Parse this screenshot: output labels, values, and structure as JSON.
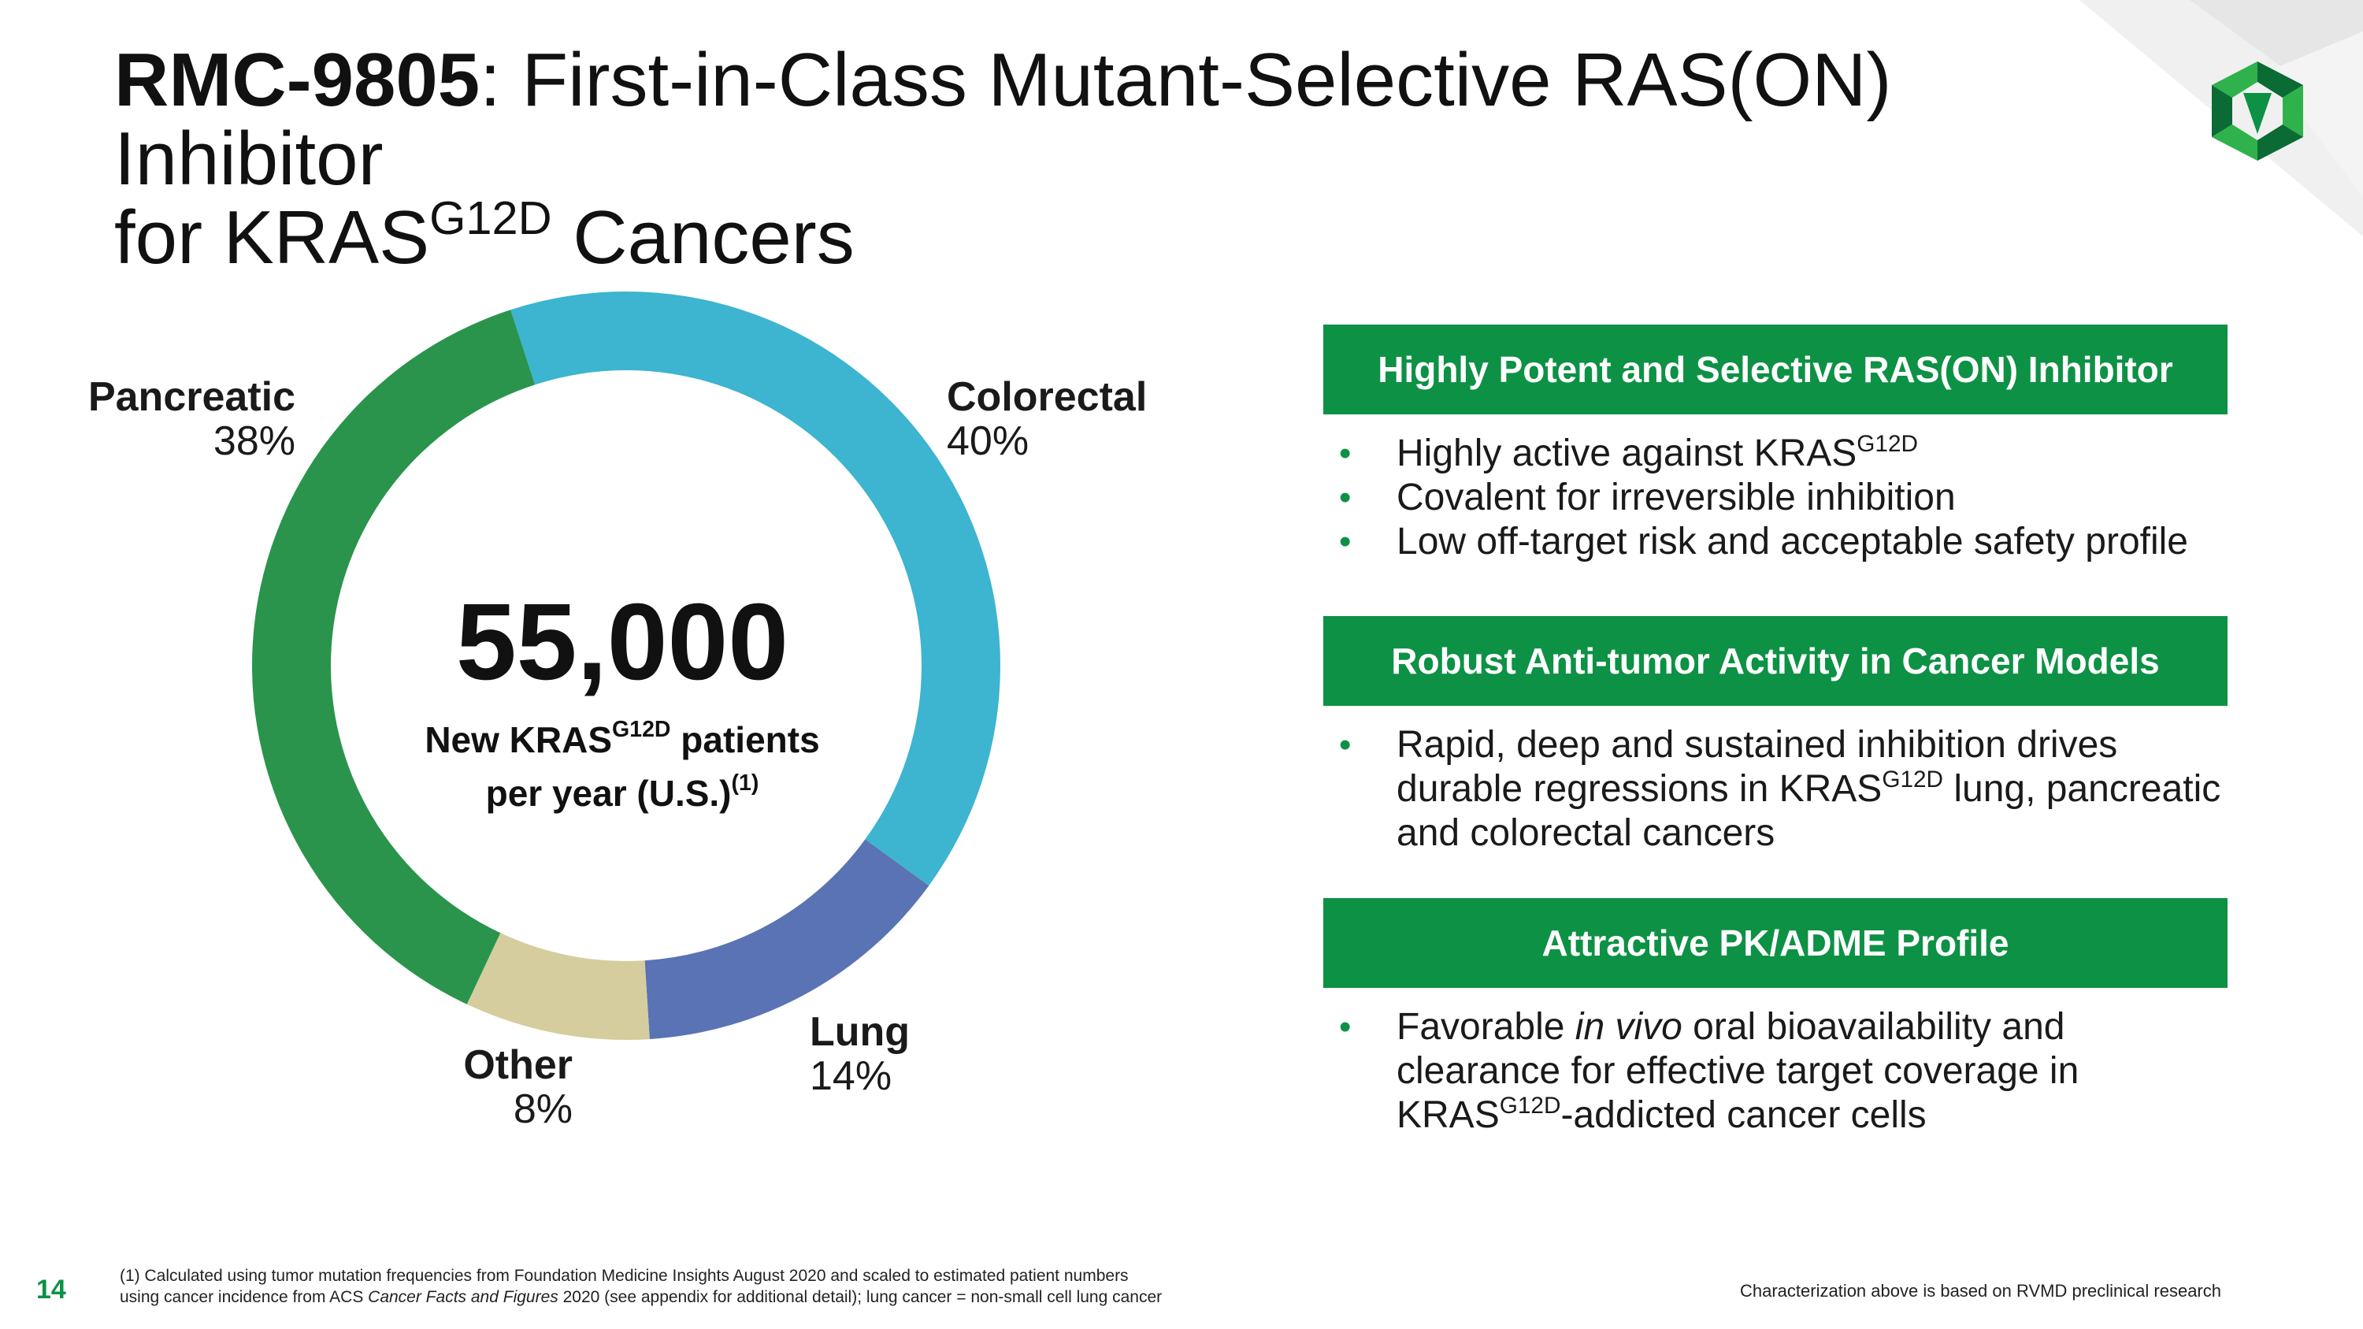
{
  "title": {
    "bold": "RMC-9805",
    "rest": ": First-in-Class Mutant-Selective RAS(ON) Inhibitor",
    "line2_pre": "for KRAS",
    "line2_sup": "G12D",
    "line2_post": " Cancers"
  },
  "chart_data": {
    "type": "pie",
    "style": "donut",
    "title": "",
    "slices": [
      {
        "label": "Colorectal",
        "value": 40,
        "value_label": "40%",
        "color": "#3db4d0"
      },
      {
        "label": "Lung",
        "value": 14,
        "value_label": "14%",
        "color": "#5a73b5"
      },
      {
        "label": "Other",
        "value": 8,
        "value_label": "8%",
        "color": "#d5cd9e"
      },
      {
        "label": "Pancreatic",
        "value": 38,
        "value_label": "38%",
        "color": "#2a944c"
      }
    ],
    "center": {
      "value": "55,000",
      "line1_pre": "New KRAS",
      "line1_sup": "G12D",
      "line1_post": " patients",
      "line2": "per year (U.S.)",
      "line2_sup": "(1)"
    }
  },
  "panels": [
    {
      "header": "Highly Potent and Selective RAS(ON) Inhibitor",
      "bullets": [
        {
          "pre": "Highly active against KRAS",
          "sup": "G12D",
          "post": ""
        },
        {
          "pre": "Covalent for irreversible inhibition"
        },
        {
          "pre": "Low off-target risk and acceptable safety profile"
        }
      ]
    },
    {
      "header": "Robust Anti-tumor Activity in Cancer Models",
      "bullets": [
        {
          "pre": "Rapid, deep and sustained inhibition drives durable regressions in KRAS",
          "sup": "G12D",
          "post": " lung, pancreatic and colorectal cancers"
        }
      ]
    },
    {
      "header": "Attractive PK/ADME Profile",
      "bullets": [
        {
          "pre": "Favorable ",
          "em": "in vivo",
          "mid": " oral bioavailability and clearance for effective target coverage in KRAS",
          "sup": "G12D",
          "post": "-addicted cancer cells"
        }
      ]
    }
  ],
  "footer": {
    "page_number": "14",
    "footnote_line1": "(1) Calculated using tumor mutation frequencies from Foundation Medicine Insights August 2020 and scaled to estimated patient numbers",
    "footnote_line2_pre": "using cancer incidence from ACS ",
    "footnote_line2_em": "Cancer Facts and Figures",
    "footnote_line2_post": " 2020 (see appendix for additional detail); lung cancer = non-small cell lung cancer",
    "right_note": "Characterization above is based on RVMD preclinical research"
  },
  "colors": {
    "brand_green": "#0d9145",
    "logo_dark": "#0a6b34",
    "logo_light": "#2fb24c",
    "corner_gray": "#eeeeee"
  },
  "icons": {
    "logo": "company-logo-icon",
    "bullet": "bullet-dot-icon"
  }
}
